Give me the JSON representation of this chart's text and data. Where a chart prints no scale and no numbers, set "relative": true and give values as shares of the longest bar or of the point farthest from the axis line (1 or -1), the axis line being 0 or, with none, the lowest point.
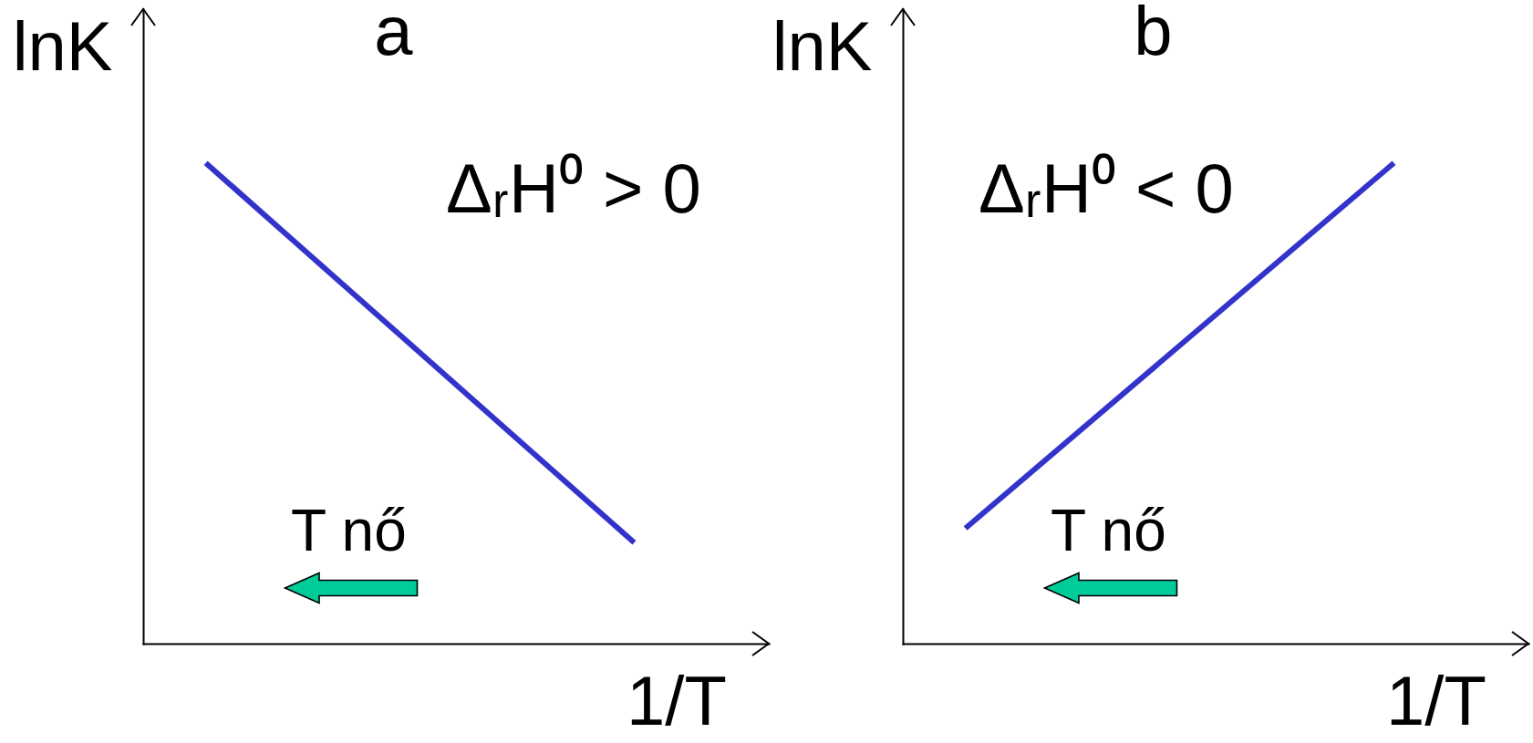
{
  "chart_data": [
    {
      "type": "line",
      "title": "a",
      "xlabel": "1/T",
      "ylabel": "lnK",
      "relative": true,
      "categories": [
        null,
        null
      ],
      "series": [
        {
          "color": "#3333cc",
          "values": [
            1,
            0.21
          ]
        }
      ],
      "annotations": [
        "ΔᵣH⁰ > 0",
        "T nő"
      ]
    },
    {
      "type": "line",
      "title": "b",
      "xlabel": "1/T",
      "ylabel": "lnK",
      "relative": true,
      "categories": [
        null,
        null
      ],
      "series": [
        {
          "color": "#3333cc",
          "values": [
            0.24,
            1
          ]
        }
      ],
      "annotations": [
        "ΔᵣH⁰ < 0",
        "T nő"
      ]
    }
  ]
}
